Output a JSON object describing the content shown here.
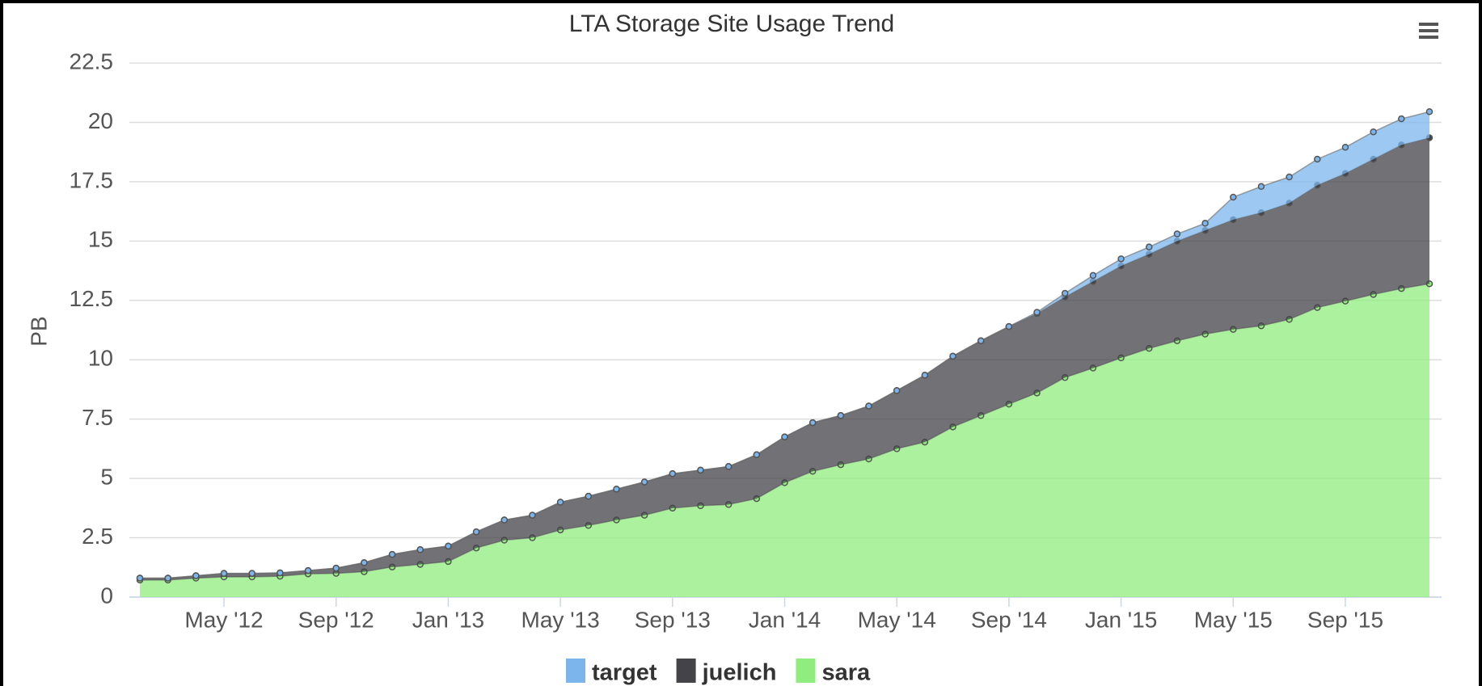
{
  "chart_data": {
    "type": "stacked_area",
    "title": "LTA Storage Site Usage Trend",
    "y_label": "PB",
    "x": [
      "2012-02",
      "2012-03",
      "2012-04",
      "2012-05",
      "2012-06",
      "2012-07",
      "2012-08",
      "2012-09",
      "2012-10",
      "2012-11",
      "2012-12",
      "2013-01",
      "2013-02",
      "2013-03",
      "2013-04",
      "2013-05",
      "2013-06",
      "2013-07",
      "2013-08",
      "2013-09",
      "2013-10",
      "2013-11",
      "2013-12",
      "2014-01",
      "2014-02",
      "2014-03",
      "2014-04",
      "2014-05",
      "2014-06",
      "2014-07",
      "2014-08",
      "2014-09",
      "2014-10",
      "2014-11",
      "2014-12",
      "2015-01",
      "2015-02",
      "2015-03",
      "2015-04",
      "2015-05",
      "2015-06",
      "2015-07",
      "2015-08",
      "2015-09",
      "2015-10",
      "2015-11",
      "2015-12"
    ],
    "series": [
      {
        "name": "target",
        "color": "#7cb5ec",
        "values": [
          0,
          0,
          0,
          0,
          0,
          0,
          0,
          0,
          0,
          0,
          0,
          0,
          0,
          0,
          0,
          0,
          0,
          0,
          0,
          0,
          0,
          0,
          0,
          0,
          0,
          0,
          0,
          0,
          0,
          0,
          0,
          0,
          0.05,
          0.15,
          0.25,
          0.3,
          0.3,
          0.3,
          0.3,
          0.95,
          1.1,
          1.1,
          1.1,
          1.1,
          1.15,
          1.1,
          1.1
        ]
      },
      {
        "name": "juelich",
        "color": "#434348",
        "values": [
          0.08,
          0.08,
          0.1,
          0.15,
          0.15,
          0.14,
          0.14,
          0.22,
          0.38,
          0.53,
          0.62,
          0.65,
          0.68,
          0.85,
          0.95,
          1.17,
          1.23,
          1.3,
          1.4,
          1.45,
          1.5,
          1.6,
          1.85,
          1.93,
          2.05,
          2.07,
          2.23,
          2.45,
          2.82,
          2.98,
          3.15,
          3.27,
          3.35,
          3.4,
          3.65,
          3.87,
          3.97,
          4.2,
          4.37,
          4.62,
          4.77,
          4.9,
          5.15,
          5.38,
          5.7,
          6.05,
          6.15
        ]
      },
      {
        "name": "sara",
        "color": "#90ed7d",
        "values": [
          0.72,
          0.72,
          0.8,
          0.85,
          0.85,
          0.88,
          0.98,
          1.0,
          1.07,
          1.27,
          1.38,
          1.5,
          2.07,
          2.4,
          2.5,
          2.83,
          3.02,
          3.25,
          3.45,
          3.75,
          3.85,
          3.9,
          4.15,
          4.82,
          5.3,
          5.58,
          5.82,
          6.25,
          6.53,
          7.17,
          7.65,
          8.13,
          8.6,
          9.25,
          9.65,
          10.08,
          10.48,
          10.8,
          11.08,
          11.28,
          11.43,
          11.7,
          12.2,
          12.47,
          12.75,
          13.0,
          13.2
        ]
      }
    ],
    "ylim": [
      0,
      22.5
    ],
    "yticks": [
      0,
      2.5,
      5,
      7.5,
      10,
      12.5,
      15,
      17.5,
      20,
      22.5
    ],
    "xticks": [
      {
        "value": "2012-05",
        "label": "May '12"
      },
      {
        "value": "2012-09",
        "label": "Sep '12"
      },
      {
        "value": "2013-01",
        "label": "Jan '13"
      },
      {
        "value": "2013-05",
        "label": "May '13"
      },
      {
        "value": "2013-09",
        "label": "Sep '13"
      },
      {
        "value": "2014-01",
        "label": "Jan '14"
      },
      {
        "value": "2014-05",
        "label": "May '14"
      },
      {
        "value": "2014-09",
        "label": "Sep '14"
      },
      {
        "value": "2015-01",
        "label": "Jan '15"
      },
      {
        "value": "2015-05",
        "label": "May '15"
      },
      {
        "value": "2015-09",
        "label": "Sep '15"
      }
    ],
    "grid": true
  }
}
